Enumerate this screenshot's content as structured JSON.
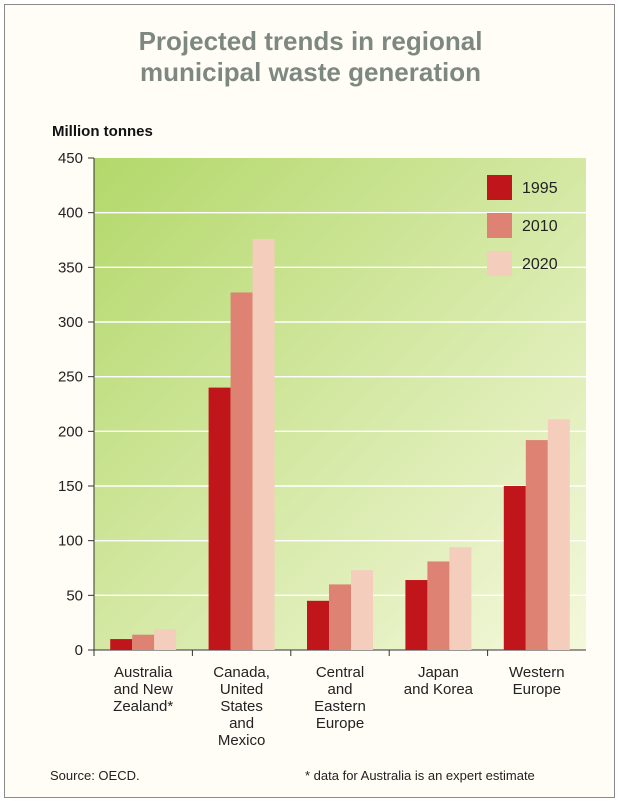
{
  "chart_data": {
    "type": "bar",
    "title_lines": [
      "Projected trends in regional",
      "municipal waste generation"
    ],
    "ylabel": "Million tonnes",
    "xlabel": "",
    "ylim": [
      0,
      450
    ],
    "yticks": [
      0,
      50,
      100,
      150,
      200,
      250,
      300,
      350,
      400,
      450
    ],
    "categories": [
      [
        "Australia",
        "and New",
        "Zealand*"
      ],
      [
        "Canada,",
        "United",
        "States",
        "and",
        "Mexico"
      ],
      [
        "Central",
        "and",
        "Eastern",
        "Europe"
      ],
      [
        "Japan",
        "and Korea"
      ],
      [
        "Western",
        "Europe"
      ]
    ],
    "series": [
      {
        "name": "1995",
        "color": "#c0161b",
        "values": [
          10,
          240,
          45,
          64,
          150
        ]
      },
      {
        "name": "2010",
        "color": "#de8374",
        "values": [
          14,
          327,
          60,
          81,
          192
        ]
      },
      {
        "name": "2020",
        "color": "#f4cdbd",
        "values": [
          19,
          376,
          73,
          94,
          211
        ]
      }
    ],
    "legend_position": "top-right",
    "grid": true,
    "grid_color": "#ffffff",
    "plot_gradient": [
      "#b3d86a",
      "#f4f8dc"
    ],
    "source": "Source: OECD.",
    "footnote": "* data for Australia is an expert estimate"
  }
}
